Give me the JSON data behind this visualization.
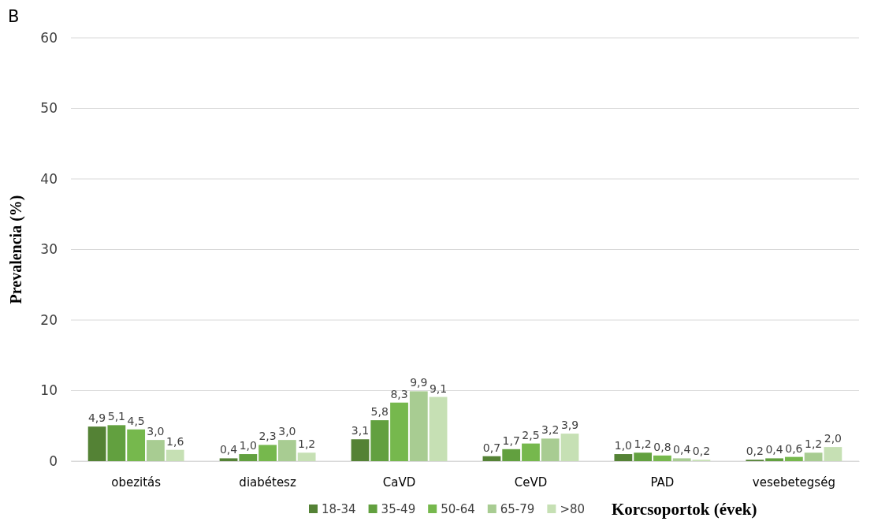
{
  "chart_data": {
    "type": "bar",
    "categories": [
      "obezitás",
      "diabétesz",
      "CaVD",
      "CeVD",
      "PAD",
      "vesebetegség"
    ],
    "series": [
      {
        "name": "18-34",
        "color": "#548235",
        "values": [
          4.9,
          0.4,
          3.1,
          0.7,
          1.0,
          0.2
        ],
        "value_labels": [
          "4,9",
          "0,4",
          "3,1",
          "0,7",
          "1,0",
          "0,2"
        ]
      },
      {
        "name": "35-49",
        "color": "#62a03f",
        "values": [
          5.1,
          1.0,
          5.8,
          1.7,
          1.2,
          0.4
        ],
        "value_labels": [
          "5,1",
          "1,0",
          "5,8",
          "1,7",
          "1,2",
          "0,4"
        ]
      },
      {
        "name": "50-64",
        "color": "#76b84d",
        "values": [
          4.5,
          2.3,
          8.3,
          2.5,
          0.8,
          0.6
        ],
        "value_labels": [
          "4,5",
          "2,3",
          "8,3",
          "2,5",
          "0,8",
          "0,6"
        ]
      },
      {
        "name": "65-79",
        "color": "#a8cc92",
        "values": [
          3.0,
          3.0,
          9.9,
          3.2,
          0.4,
          1.2
        ],
        "value_labels": [
          "3,0",
          "3,0",
          "9,9",
          "3,2",
          "0,4",
          "1,2"
        ]
      },
      {
        "name": ">80",
        "color": "#c6e0b4",
        "values": [
          1.6,
          1.2,
          9.1,
          3.9,
          0.2,
          2.0
        ],
        "value_labels": [
          "1,6",
          "1,2",
          "9,1",
          "3,9",
          "0,2",
          "2,0"
        ]
      }
    ],
    "ylabel": "Prevalencia (%)",
    "legend_title": "Korcsoportok (évek)",
    "annotations": [
      "B"
    ],
    "ylim": [
      0,
      60
    ],
    "yticks": [
      0,
      10,
      20,
      30,
      40,
      50,
      60
    ],
    "grid": "y",
    "legend": "bottom"
  }
}
